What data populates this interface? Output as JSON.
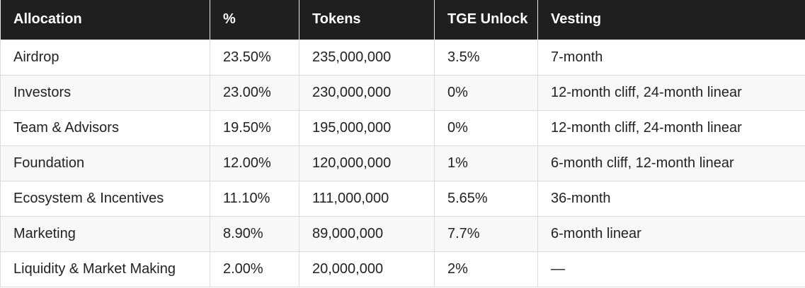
{
  "table": {
    "header": [
      "Allocation",
      "%",
      "Tokens",
      "TGE Unlock",
      "Vesting"
    ],
    "rows": [
      [
        "Airdrop",
        "23.50%",
        "235,000,000",
        "3.5%",
        "7-month"
      ],
      [
        "Investors",
        "23.00%",
        "230,000,000",
        "0%",
        "12-month cliff, 24-month linear"
      ],
      [
        "Team & Advisors",
        "19.50%",
        "195,000,000",
        "0%",
        "12-month cliff, 24-month linear"
      ],
      [
        "Foundation",
        "12.00%",
        "120,000,000",
        "1%",
        "6-month cliff, 12-month linear"
      ],
      [
        "Ecosystem & Incentives",
        "11.10%",
        "111,000,000",
        "5.65%",
        "36-month"
      ],
      [
        "Marketing",
        "8.90%",
        "89,000,000",
        "7.7%",
        "6-month linear"
      ],
      [
        "Liquidity & Market Making",
        "2.00%",
        "20,000,000",
        "2%",
        "—"
      ]
    ]
  }
}
